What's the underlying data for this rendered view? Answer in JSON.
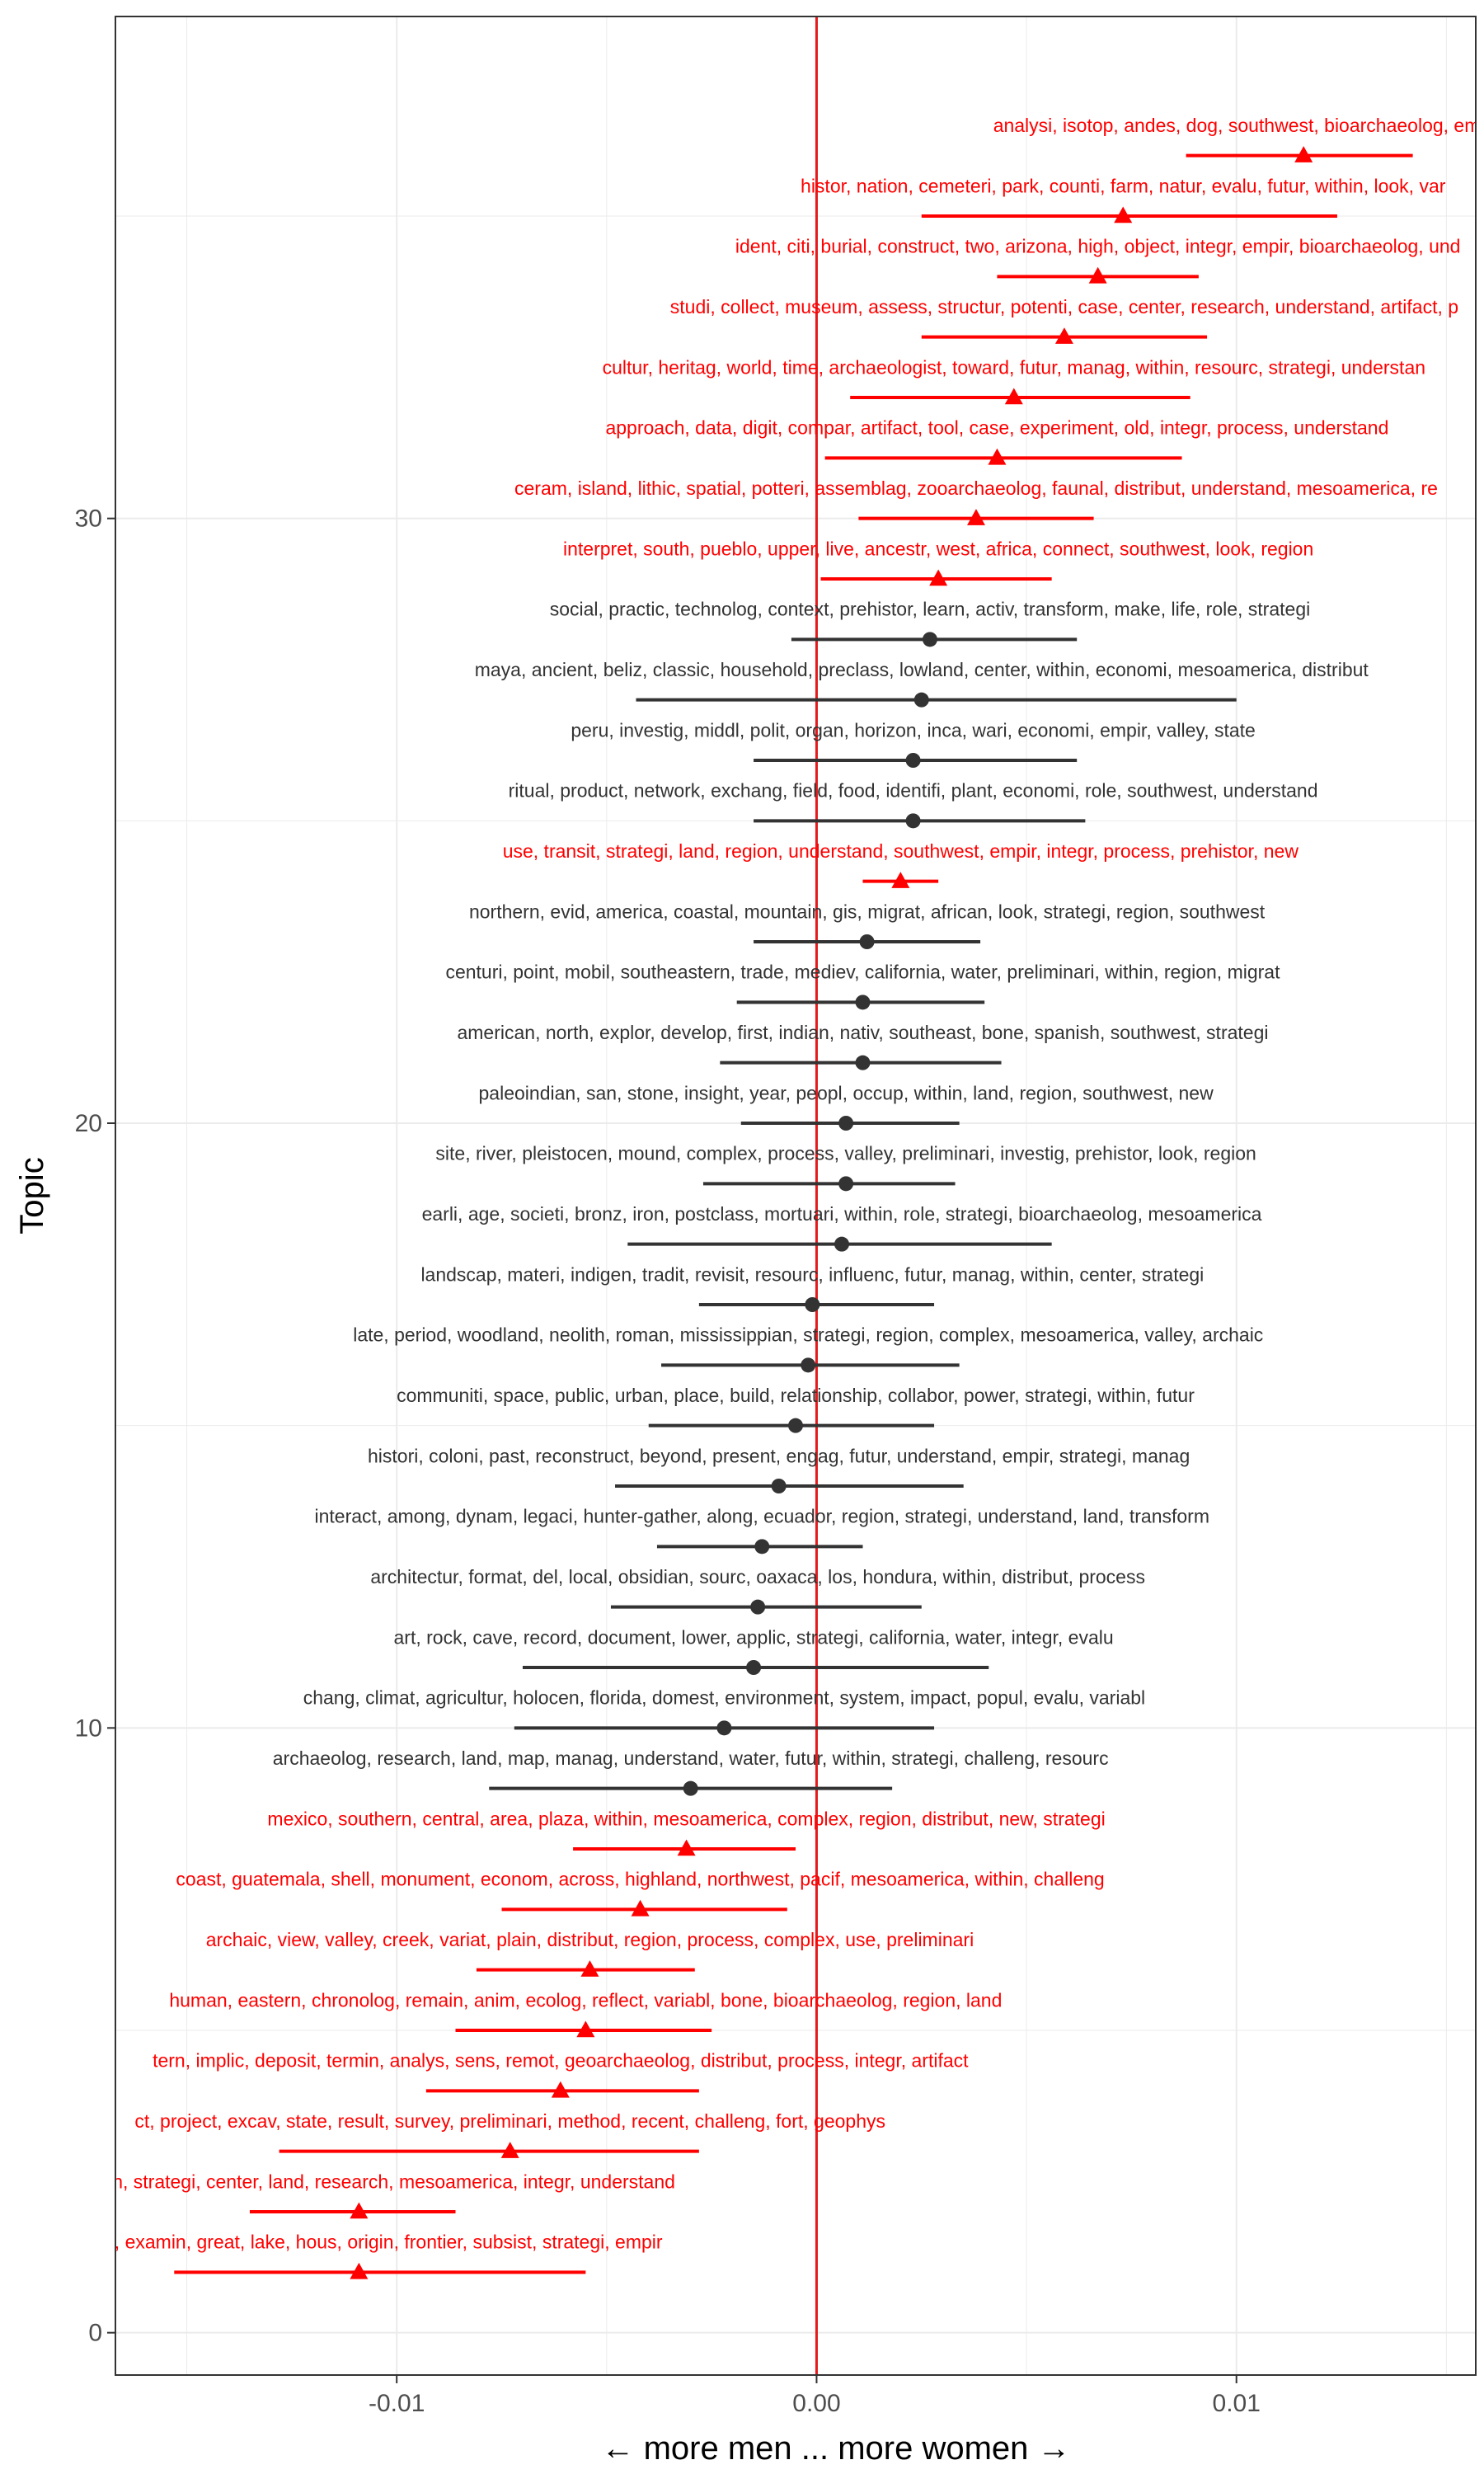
{
  "chart_data": {
    "type": "scatter",
    "subtype": "point-range (coefficient plot)",
    "xlabel": "← more men  ...  more women →",
    "ylabel": "Topic",
    "xlim": [
      -0.0167,
      0.0157
    ],
    "ylim": [
      -0.7,
      38.3
    ],
    "x_ticks": [
      -0.01,
      0,
      0.01
    ],
    "x_tick_labels": [
      "-0.01",
      "0.00",
      "0.01"
    ],
    "y_ticks": [
      0,
      10,
      20,
      30
    ],
    "y_tick_labels": [
      "0",
      "10",
      "20",
      "30"
    ],
    "grid": true,
    "reference_line": {
      "x": 0,
      "color": "#e41a1c"
    },
    "colors": {
      "significant": "#ff0000",
      "not_significant": "#333333"
    },
    "topics": [
      {
        "y": 1,
        "estimate": -0.0109,
        "lower": -0.0153,
        "upper": -0.0055,
        "significant": true,
        "label": "pattern, examin, great, lake, hous, origin, frontier, subsist, strategi, empir"
      },
      {
        "y": 2,
        "estimate": -0.0109,
        "lower": -0.0135,
        "upper": -0.0086,
        "significant": true,
        "label": "on, within, strategi, center, land, research, mesoamerica, integr, understand"
      },
      {
        "y": 3,
        "estimate": -0.0073,
        "lower": -0.0128,
        "upper": -0.0028,
        "significant": true,
        "label": "ct, project, excav, state, result, survey, preliminari, method, recent, challeng, fort, geophys"
      },
      {
        "y": 4,
        "estimate": -0.0061,
        "lower": -0.0093,
        "upper": -0.0028,
        "significant": true,
        "label": "tern, implic, deposit, termin, analys, sens, remot, geoarchaeolog, distribut, process, integr, artifact"
      },
      {
        "y": 5,
        "estimate": -0.0055,
        "lower": -0.0086,
        "upper": -0.0025,
        "significant": true,
        "label": "human, eastern, chronolog, remain, anim, ecolog, reflect, variabl, bone, bioarchaeolog, region, land"
      },
      {
        "y": 6,
        "estimate": -0.0054,
        "lower": -0.0081,
        "upper": -0.0029,
        "significant": true,
        "label": "archaic, view, valley, creek, variat, plain, distribut, region, process, complex, use, preliminari"
      },
      {
        "y": 7,
        "estimate": -0.0042,
        "lower": -0.0075,
        "upper": -0.0007,
        "significant": true,
        "label": "coast, guatemala, shell, monument, econom, across, highland, northwest, pacif, mesoamerica, within, challeng"
      },
      {
        "y": 8,
        "estimate": -0.0031,
        "lower": -0.0058,
        "upper": -0.0005,
        "significant": true,
        "label": "mexico, southern, central, area, plaza, within, mesoamerica, complex, region, distribut, new, strategi"
      },
      {
        "y": 9,
        "estimate": -0.003,
        "lower": -0.0078,
        "upper": 0.0018,
        "significant": false,
        "label": "archaeolog, research, land, map, manag, understand, water, futur, within, strategi, challeng, resourc"
      },
      {
        "y": 10,
        "estimate": -0.0022,
        "lower": -0.0072,
        "upper": 0.0028,
        "significant": false,
        "label": "chang, climat, agricultur, holocen, florida, domest, environment, system, impact, popul, evalu, variabl"
      },
      {
        "y": 11,
        "estimate": -0.0015,
        "lower": -0.007,
        "upper": 0.0041,
        "significant": false,
        "label": "art, rock, cave, record, document, lower, applic, strategi, california, water, integr, evalu"
      },
      {
        "y": 12,
        "estimate": -0.0014,
        "lower": -0.0049,
        "upper": 0.0025,
        "significant": false,
        "label": "architectur, format, del, local, obsidian, sourc, oaxaca, los, hondura, within, distribut, process"
      },
      {
        "y": 13,
        "estimate": -0.0013,
        "lower": -0.0038,
        "upper": 0.0011,
        "significant": false,
        "label": "interact, among, dynam, legaci, hunter-gather, along, ecuador, region, strategi, understand, land, transform"
      },
      {
        "y": 14,
        "estimate": -0.0009,
        "lower": -0.0048,
        "upper": 0.0035,
        "significant": false,
        "label": "histori, coloni, past, reconstruct, beyond, present, engag, futur, understand, empir, strategi, manag"
      },
      {
        "y": 15,
        "estimate": -0.0005,
        "lower": -0.004,
        "upper": 0.0028,
        "significant": false,
        "label": "communiti, space, public, urban, place, build, relationship, collabor, power, strategi, within, futur"
      },
      {
        "y": 16,
        "estimate": -0.0002,
        "lower": -0.0037,
        "upper": 0.0034,
        "significant": false,
        "label": "late, period, woodland, neolith, roman, mississippian, strategi, region, complex, mesoamerica, valley, archaic"
      },
      {
        "y": 17,
        "estimate": -0.0001,
        "lower": -0.0028,
        "upper": 0.0028,
        "significant": false,
        "label": "landscap, materi, indigen, tradit, revisit, resourc, influenc, futur, manag, within, center, strategi"
      },
      {
        "y": 18,
        "estimate": 0.0006,
        "lower": -0.0045,
        "upper": 0.0056,
        "significant": false,
        "label": "earli, age, societi, bronz, iron, postclass, mortuari, within, role, strategi, bioarchaeolog, mesoamerica"
      },
      {
        "y": 19,
        "estimate": 0.0007,
        "lower": -0.0027,
        "upper": 0.0033,
        "significant": false,
        "label": "site, river, pleistocen, mound, complex, process, valley, preliminari, investig, prehistor, look, region"
      },
      {
        "y": 20,
        "estimate": 0.0007,
        "lower": -0.0018,
        "upper": 0.0034,
        "significant": false,
        "label": "paleoindian, san, stone, insight, year, peopl, occup, within, land, region, southwest, new"
      },
      {
        "y": 21,
        "estimate": 0.0011,
        "lower": -0.0023,
        "upper": 0.0044,
        "significant": false,
        "label": "american, north, explor, develop, first, indian, nativ, southeast, bone, spanish, southwest, strategi"
      },
      {
        "y": 22,
        "estimate": 0.0011,
        "lower": -0.0019,
        "upper": 0.004,
        "significant": false,
        "label": "centuri, point, mobil, southeastern, trade, mediev, california, water, preliminari, within, region, migrat"
      },
      {
        "y": 23,
        "estimate": 0.0012,
        "lower": -0.0015,
        "upper": 0.0039,
        "significant": false,
        "label": "northern, evid, america, coastal, mountain, gis, migrat, african, look, strategi, region, southwest"
      },
      {
        "y": 24,
        "estimate": 0.002,
        "lower": 0.0011,
        "upper": 0.0029,
        "significant": true,
        "label": "use, transit, strategi, land, region, understand, southwest, empir, integr, process, prehistor, new"
      },
      {
        "y": 25,
        "estimate": 0.0023,
        "lower": -0.0015,
        "upper": 0.0064,
        "significant": false,
        "label": "ritual, product, network, exchang, field, food, identifi, plant, economi, role, southwest, understand"
      },
      {
        "y": 26,
        "estimate": 0.0023,
        "lower": -0.0015,
        "upper": 0.0062,
        "significant": false,
        "label": "peru, investig, middl, polit, organ, horizon, inca, wari, economi, empir, valley, state"
      },
      {
        "y": 27,
        "estimate": 0.0025,
        "lower": -0.0043,
        "upper": 0.01,
        "significant": false,
        "label": "maya, ancient, beliz, classic, household, preclass, lowland, center, within, economi, mesoamerica, distribut"
      },
      {
        "y": 28,
        "estimate": 0.0027,
        "lower": -0.0006,
        "upper": 0.0062,
        "significant": false,
        "label": "social, practic, technolog, context, prehistor, learn, activ, transform, make, life, role, strategi"
      },
      {
        "y": 29,
        "estimate": 0.0029,
        "lower": 0.0001,
        "upper": 0.0056,
        "significant": true,
        "label": "interpret, south, pueblo, upper, live, ancestr, west, africa, connect, southwest, look, region"
      },
      {
        "y": 30,
        "estimate": 0.0038,
        "lower": 0.001,
        "upper": 0.0066,
        "significant": true,
        "label": "ceram, island, lithic, spatial, potteri, assemblag, zooarchaeolog, faunal, distribut, understand, mesoamerica, re"
      },
      {
        "y": 31,
        "estimate": 0.0043,
        "lower": 0.0002,
        "upper": 0.0087,
        "significant": true,
        "label": "approach, data, digit, compar, artifact, tool, case, experiment, old, integr, process, understand"
      },
      {
        "y": 32,
        "estimate": 0.0047,
        "lower": 0.0008,
        "upper": 0.0089,
        "significant": true,
        "label": "cultur, heritag, world, time, archaeologist, toward, futur, manag, within, resourc, strategi, understan"
      },
      {
        "y": 33,
        "estimate": 0.0059,
        "lower": 0.0025,
        "upper": 0.0093,
        "significant": true,
        "label": "studi, collect, museum, assess, structur, potenti, case, center, research, understand, artifact, p"
      },
      {
        "y": 34,
        "estimate": 0.0067,
        "lower": 0.0043,
        "upper": 0.0091,
        "significant": true,
        "label": "ident, citi, burial, construct, two, arizona, high, object, integr, empir, bioarchaeolog, und"
      },
      {
        "y": 35,
        "estimate": 0.0073,
        "lower": 0.0025,
        "upper": 0.0124,
        "significant": true,
        "label": "histor, nation, cemeteri, park, counti, farm, natur, evalu, futur, within, look, var"
      },
      {
        "y": 36,
        "estimate": 0.0116,
        "lower": 0.0088,
        "upper": 0.0142,
        "significant": true,
        "label": "analysi, isotop, andes, dog, southwest, bioarchaeolog, empir, mesoameric"
      }
    ]
  }
}
